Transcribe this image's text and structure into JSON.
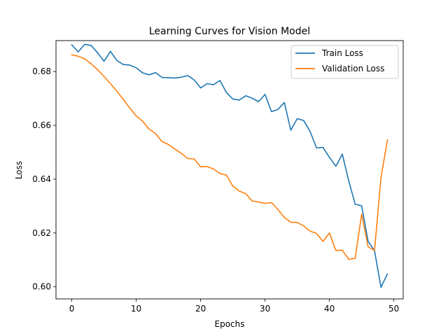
{
  "chart_data": {
    "type": "line",
    "title": "Learning Curves for Vision Model",
    "xlabel": "Epochs",
    "ylabel": "Loss",
    "xlim": [
      -2.45,
      51.45
    ],
    "ylim": [
      0.5955,
      0.6915
    ],
    "xticks": [
      0,
      10,
      20,
      30,
      40,
      50
    ],
    "yticks": [
      0.6,
      0.62,
      0.64,
      0.66,
      0.68
    ],
    "ytick_labels": [
      "0.60",
      "0.62",
      "0.64",
      "0.66",
      "0.68"
    ],
    "legend_position": "top-right",
    "grid": false,
    "x": [
      0,
      1,
      2,
      3,
      4,
      5,
      6,
      7,
      8,
      9,
      10,
      11,
      12,
      13,
      14,
      15,
      16,
      17,
      18,
      19,
      20,
      21,
      22,
      23,
      24,
      25,
      26,
      27,
      28,
      29,
      30,
      31,
      32,
      33,
      34,
      35,
      36,
      37,
      38,
      39,
      40,
      41,
      42,
      43,
      44,
      45,
      46,
      47,
      48,
      49
    ],
    "series": [
      {
        "name": "Train Loss",
        "color": "#1f77b4",
        "values": [
          0.6899,
          0.6873,
          0.6901,
          0.6897,
          0.687,
          0.6838,
          0.6875,
          0.6841,
          0.6826,
          0.6824,
          0.6814,
          0.6795,
          0.6788,
          0.6796,
          0.6778,
          0.6777,
          0.6776,
          0.6779,
          0.6785,
          0.6769,
          0.6739,
          0.6755,
          0.6751,
          0.6767,
          0.6722,
          0.6698,
          0.6694,
          0.671,
          0.6701,
          0.6688,
          0.6715,
          0.6651,
          0.6659,
          0.6685,
          0.6582,
          0.6625,
          0.6618,
          0.6577,
          0.6516,
          0.6518,
          0.6481,
          0.6448,
          0.6493,
          0.6393,
          0.6307,
          0.6301,
          0.6169,
          0.6134,
          0.5998,
          0.6048
        ]
      },
      {
        "name": "Validation Loss",
        "color": "#ff7f0e",
        "values": [
          0.6862,
          0.6857,
          0.6847,
          0.6829,
          0.6807,
          0.6782,
          0.6755,
          0.6727,
          0.6696,
          0.6665,
          0.6635,
          0.6615,
          0.6586,
          0.657,
          0.654,
          0.6529,
          0.6512,
          0.6496,
          0.6477,
          0.6475,
          0.6446,
          0.6447,
          0.6438,
          0.6421,
          0.6415,
          0.6374,
          0.6356,
          0.6346,
          0.6319,
          0.6315,
          0.631,
          0.6313,
          0.6287,
          0.6258,
          0.624,
          0.6239,
          0.6226,
          0.6207,
          0.6198,
          0.6169,
          0.62,
          0.6135,
          0.6136,
          0.6102,
          0.6106,
          0.627,
          0.6149,
          0.6135,
          0.6405,
          0.6546
        ]
      }
    ]
  }
}
